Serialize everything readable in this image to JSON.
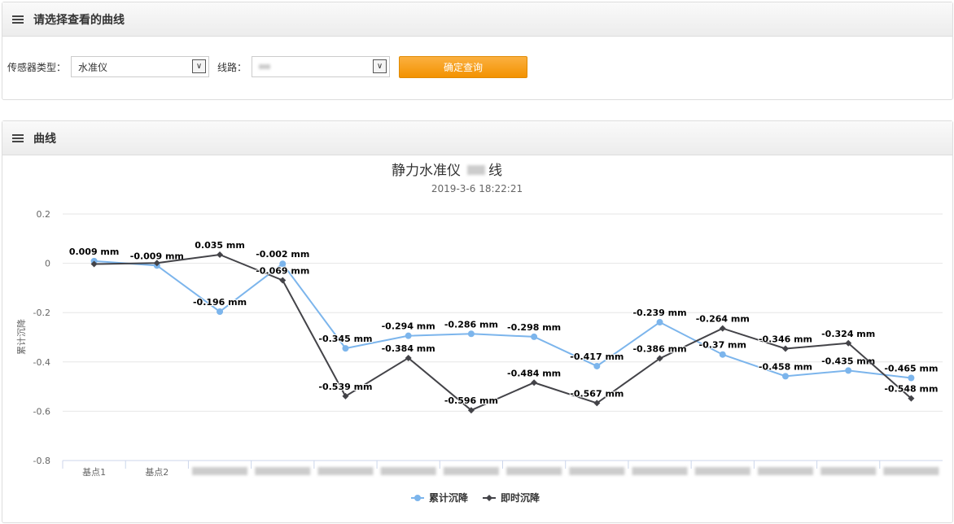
{
  "filter_panel": {
    "title": "请选择查看的曲线",
    "sensor_type_label": "传感器类型：",
    "sensor_type_value": "水准仪",
    "line_label": "线路：",
    "line_value": "",
    "query_button": "确定查询"
  },
  "chart_panel": {
    "title": "曲线"
  },
  "chart_data": {
    "type": "line",
    "title": "静力水准仪",
    "title_suffix": "线",
    "subtitle": "2019-3-6 18:22:21",
    "ylabel": "累计沉降",
    "ylim": [
      -0.8,
      0.2
    ],
    "yticks": [
      0.2,
      0,
      -0.2,
      -0.4,
      -0.6,
      -0.8
    ],
    "grid": true,
    "legend_position": "bottom",
    "unit": "mm",
    "categories": [
      "基点1",
      "基点2",
      "",
      "",
      "",
      "",
      "",
      "",
      "",
      "",
      "",
      "",
      "",
      ""
    ],
    "series": [
      {
        "name": "累计沉降",
        "color": "#7cb5ec",
        "marker": "circle",
        "values": [
          0.009,
          -0.009,
          -0.196,
          -0.002,
          -0.345,
          -0.294,
          -0.286,
          -0.298,
          -0.417,
          -0.239,
          -0.37,
          -0.458,
          -0.435,
          -0.465
        ],
        "labels": [
          true,
          true,
          true,
          true,
          true,
          true,
          true,
          true,
          true,
          true,
          true,
          true,
          true,
          true
        ]
      },
      {
        "name": "即时沉降",
        "color": "#434348",
        "marker": "diamond",
        "values": [
          -0.003,
          0.001,
          0.035,
          -0.069,
          -0.539,
          -0.384,
          -0.596,
          -0.484,
          -0.567,
          -0.386,
          -0.264,
          -0.346,
          -0.324,
          -0.548
        ],
        "labels": [
          false,
          false,
          true,
          true,
          true,
          true,
          true,
          true,
          true,
          true,
          true,
          true,
          true,
          true
        ]
      }
    ]
  }
}
